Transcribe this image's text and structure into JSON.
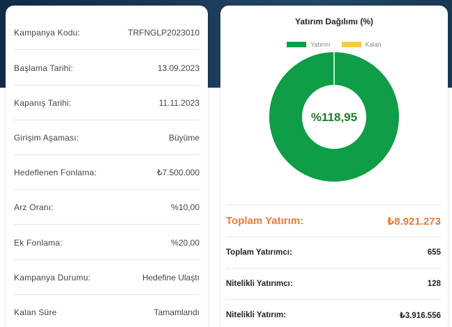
{
  "campaign": {
    "rows": [
      {
        "label": "Kampanya Kodu:",
        "value": "TRFNGLP2023010"
      },
      {
        "label": "Başlama Tarihi:",
        "value": "13.09.2023"
      },
      {
        "label": "Kapanış Tarihi:",
        "value": "11.11.2023"
      },
      {
        "label": "Girişim Aşaması:",
        "value": "Büyüme"
      },
      {
        "label": "Hedeflenen Fonlama:",
        "value": "₺7.500.000"
      },
      {
        "label": "Arz Oranı:",
        "value": "%10,00"
      },
      {
        "label": "Ek Fonlama:",
        "value": "%20,00"
      },
      {
        "label": "Kampanya Durumu:",
        "value": "Hedefine Ulaştı"
      },
      {
        "label": "Kalan Süre",
        "value": "Tamamlandı"
      }
    ]
  },
  "investment": {
    "total_label": "Toplam Yatırım:",
    "total_value": "₺8.921.273",
    "stats": [
      {
        "label": "Toplam Yatırımcı:",
        "value": "655"
      },
      {
        "label": "Nitelikli Yatırımcı:",
        "value": "128"
      },
      {
        "label": "Nitelikli Yatırım:",
        "value": "₺3.916.556"
      }
    ]
  },
  "chart_data": {
    "type": "pie",
    "title": "Yatırım Dağılımı (%)",
    "center_label": "%118,95",
    "series": [
      {
        "name": "Yatırım",
        "value": 100,
        "color": "#0f9d47"
      },
      {
        "name": "Kalan",
        "value": 0,
        "color": "#f7c948"
      }
    ],
    "legend_position": "top-center"
  },
  "colors": {
    "accent_orange": "#ef7b34",
    "invest_green": "#0f9d47",
    "center_text_green": "#1e7d2c",
    "remaining_yellow": "#f7c948",
    "banner_navy": "#1b3a58"
  }
}
